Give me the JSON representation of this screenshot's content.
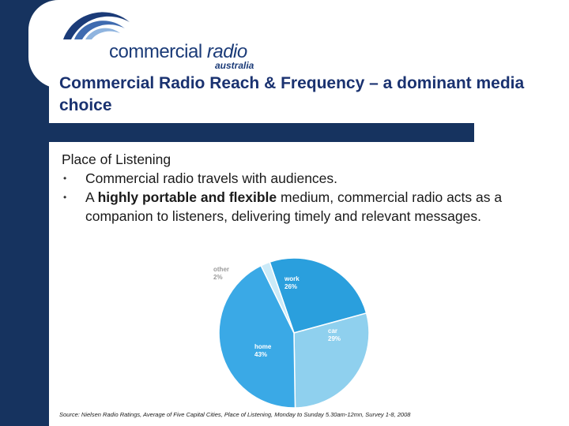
{
  "brand": {
    "name_main": "commercial",
    "name_radio": " radio",
    "name_sub": "australia"
  },
  "slide": {
    "title": "Commercial Radio Reach & Frequency – a dominant media choice",
    "heading": "Place of Listening",
    "bullet1": "Commercial radio travels with audiences.",
    "bullet2_pre": "A ",
    "bullet2_bold": "highly portable and flexible",
    "bullet2_post": " medium, commercial radio acts as a companion to listeners, delivering timely and relevant messages."
  },
  "chart_data": {
    "type": "pie",
    "slices": [
      {
        "label": "work",
        "value": 26,
        "display": "26%"
      },
      {
        "label": "car",
        "value": 29,
        "display": "29%"
      },
      {
        "label": "home",
        "value": 43,
        "display": "43%"
      },
      {
        "label": "other",
        "value": 2,
        "display": "2%"
      }
    ],
    "colors": [
      "#2a9fdd",
      "#8fd0ee",
      "#3aa9e6",
      "#cbeaf8"
    ],
    "source": "Source: Nielsen Radio Ratings, Average of Five Capital Cities, Place of Listening, Monday to Sunday 5.30am-12mn, Survey 1-8, 2008"
  }
}
